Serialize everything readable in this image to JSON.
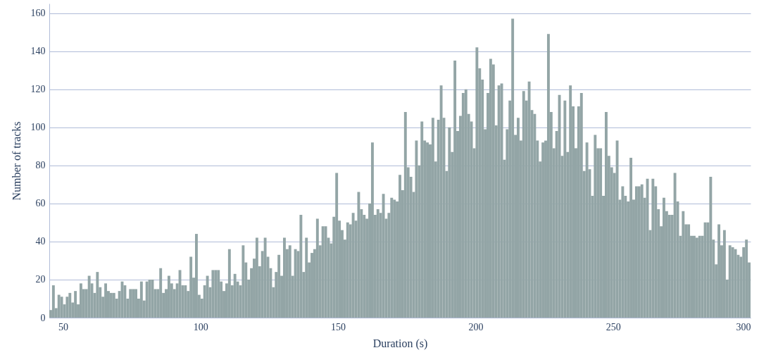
{
  "chart_data": {
    "type": "histogram",
    "xlabel": "Duration (s)",
    "ylabel": "Number of tracks",
    "color": "#93a5a6",
    "bins": [
      45,
      46,
      47,
      48,
      49,
      50,
      51,
      52,
      53,
      54,
      55,
      56,
      57,
      58,
      59,
      60,
      61,
      62,
      63,
      64,
      65,
      66,
      67,
      68,
      69,
      70,
      71,
      72,
      73,
      74,
      75,
      76,
      77,
      78,
      79,
      80,
      81,
      82,
      83,
      84,
      85,
      86,
      87,
      88,
      89,
      90,
      91,
      92,
      93,
      94,
      95,
      96,
      97,
      98,
      99,
      100,
      101,
      102,
      103,
      104,
      105,
      106,
      107,
      108,
      109,
      110,
      111,
      112,
      113,
      114,
      115,
      116,
      117,
      118,
      119,
      120,
      121,
      122,
      123,
      124,
      125,
      126,
      127,
      128,
      129,
      130,
      131,
      132,
      133,
      134,
      135,
      136,
      137,
      138,
      139,
      140,
      141,
      142,
      143,
      144,
      145,
      146,
      147,
      148,
      149,
      150,
      151,
      152,
      153,
      154,
      155,
      156,
      157,
      158,
      159,
      160,
      161,
      162,
      163,
      164,
      165,
      166,
      167,
      168,
      169,
      170,
      171,
      172,
      173,
      174,
      175,
      176,
      177,
      178,
      179,
      180,
      181,
      182,
      183,
      184,
      185,
      186,
      187,
      188,
      189,
      190,
      191,
      192,
      193,
      194,
      195,
      196,
      197,
      198,
      199,
      200,
      201,
      202,
      203,
      204,
      205,
      206,
      207,
      208,
      209,
      210,
      211,
      212,
      213,
      214,
      215,
      216,
      217,
      218,
      219,
      220,
      221,
      222,
      223,
      224,
      225,
      226,
      227,
      228,
      229,
      230,
      231,
      232,
      233,
      234,
      235,
      236,
      237,
      238,
      239,
      240,
      241,
      242,
      243,
      244,
      245,
      246,
      247,
      248,
      249,
      250,
      251,
      252,
      253,
      254,
      255,
      256,
      257,
      258,
      259,
      260,
      261,
      262,
      263,
      264,
      265,
      266,
      267,
      268,
      269,
      270,
      271,
      272,
      273,
      274,
      275,
      276,
      277,
      278,
      279,
      280,
      281,
      282,
      283,
      284,
      285,
      286,
      287,
      288,
      289,
      290,
      291,
      292,
      293,
      294,
      295,
      296,
      297,
      298,
      299,
      300
    ],
    "values": [
      4,
      17,
      5,
      12,
      11,
      7,
      11,
      13,
      8,
      14,
      7,
      18,
      15,
      15,
      22,
      18,
      13,
      24,
      16,
      11,
      18,
      14,
      13,
      13,
      10,
      14,
      19,
      17,
      10,
      15,
      15,
      15,
      10,
      19,
      9,
      19,
      20,
      20,
      15,
      15,
      26,
      13,
      15,
      22,
      18,
      15,
      18,
      25,
      17,
      17,
      14,
      32,
      21,
      44,
      12,
      10,
      17,
      22,
      16,
      25,
      25,
      25,
      19,
      14,
      18,
      36,
      17,
      23,
      19,
      17,
      38,
      29,
      20,
      26,
      31,
      42,
      27,
      35,
      42,
      32,
      26,
      16,
      24,
      33,
      22,
      42,
      36,
      38,
      22,
      36,
      35,
      54,
      24,
      42,
      29,
      34,
      36,
      52,
      38,
      48,
      48,
      42,
      39,
      53,
      76,
      51,
      46,
      41,
      50,
      49,
      55,
      51,
      66,
      57,
      54,
      52,
      60,
      92,
      54,
      57,
      55,
      65,
      52,
      55,
      63,
      62,
      61,
      75,
      67,
      108,
      79,
      74,
      66,
      93,
      80,
      103,
      93,
      92,
      91,
      105,
      82,
      104,
      122,
      105,
      77,
      100,
      87,
      135,
      98,
      106,
      118,
      120,
      107,
      103,
      89,
      142,
      131,
      125,
      99,
      118,
      136,
      133,
      101,
      122,
      123,
      83,
      99,
      114,
      157,
      96,
      105,
      93,
      119,
      114,
      124,
      109,
      107,
      93,
      82,
      92,
      93,
      149,
      108,
      89,
      98,
      117,
      85,
      114,
      87,
      122,
      111,
      89,
      111,
      118,
      77,
      92,
      78,
      64,
      96,
      89,
      89,
      64,
      108,
      85,
      79,
      76,
      93,
      62,
      69,
      64,
      61,
      84,
      62,
      69,
      69,
      70,
      63,
      73,
      46,
      73,
      69,
      57,
      48,
      63,
      56,
      54,
      54,
      76,
      61,
      43,
      56,
      49,
      49,
      43,
      43,
      42,
      43,
      43,
      50,
      50,
      74,
      41,
      28,
      49,
      38,
      46,
      20,
      38,
      37,
      36,
      33,
      32,
      37,
      41,
      29
    ],
    "xlim": [
      45,
      300
    ],
    "ylim": [
      0,
      165
    ],
    "xticks": [
      50,
      100,
      150,
      200,
      250,
      300
    ],
    "yticks": [
      0,
      20,
      40,
      60,
      80,
      100,
      120,
      140,
      160
    ],
    "grid": "y"
  }
}
